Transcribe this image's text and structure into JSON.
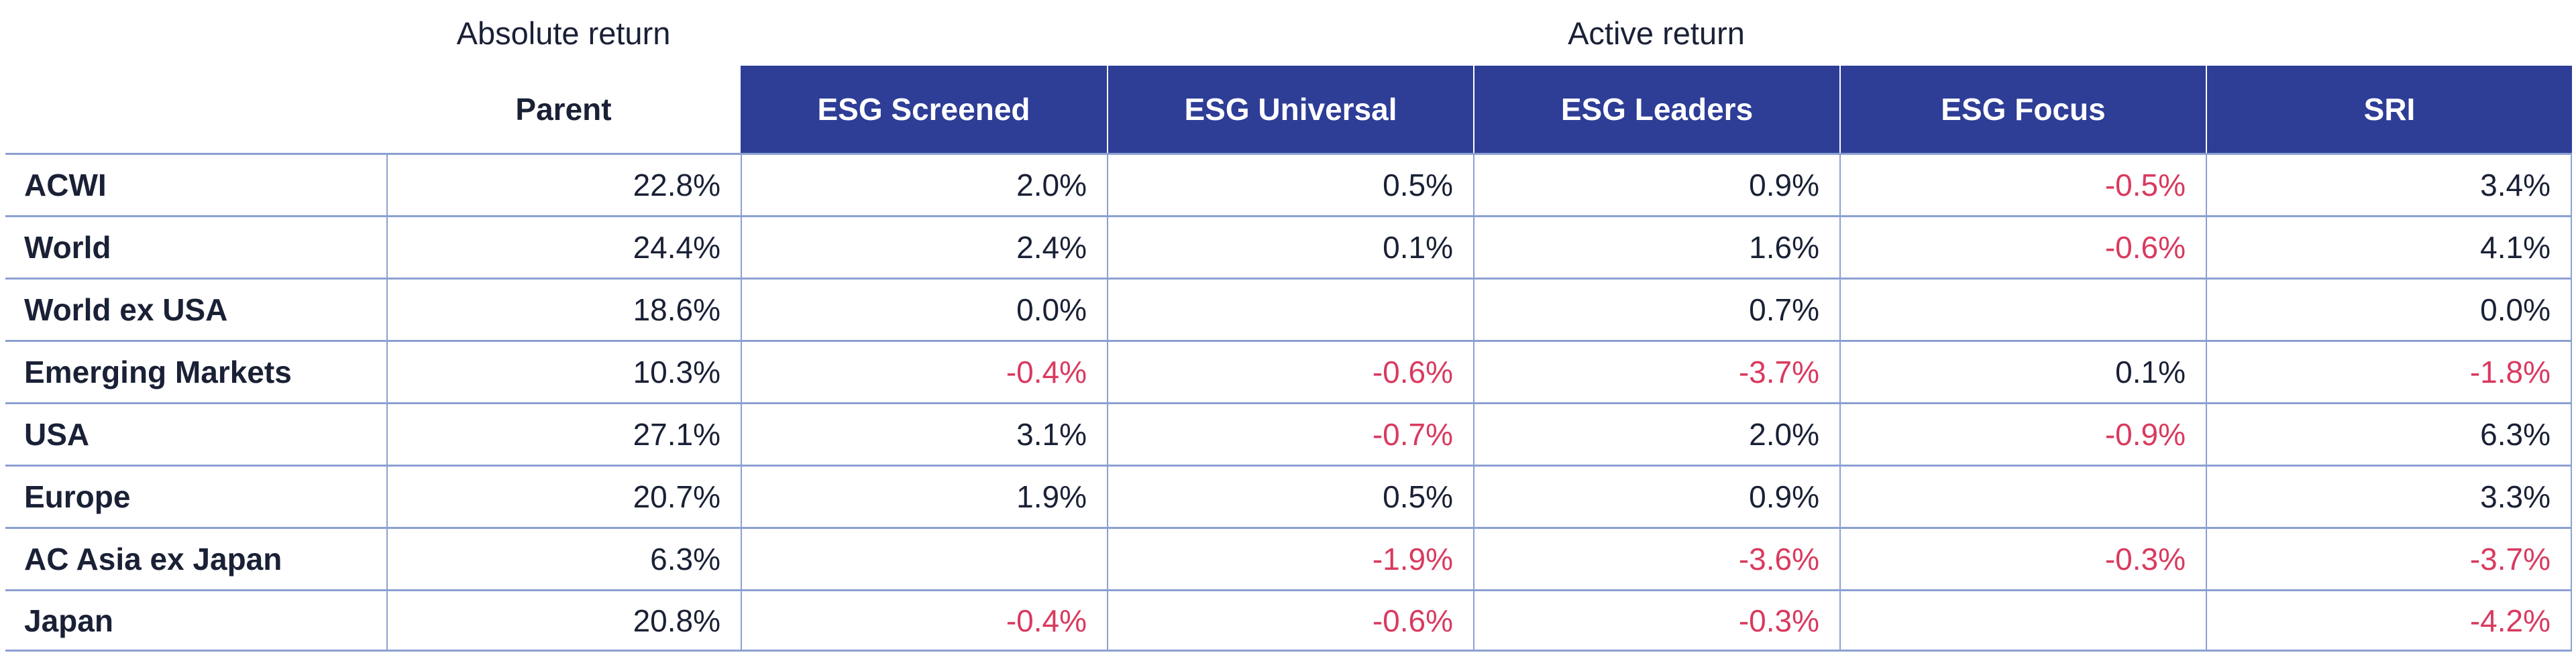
{
  "page": {
    "group_titles": {
      "absolute": "Absolute return",
      "active": "Active return"
    }
  },
  "table": {
    "columns": [
      "Parent",
      "ESG Screened",
      "ESG Universal",
      "ESG Leaders",
      "ESG Focus",
      "SRI"
    ],
    "rows": [
      {
        "label": "ACWI",
        "values": [
          "22.8%",
          "2.0%",
          "0.5%",
          "0.9%",
          "-0.5%",
          "3.4%"
        ]
      },
      {
        "label": "World",
        "values": [
          "24.4%",
          "2.4%",
          "0.1%",
          "1.6%",
          "-0.6%",
          "4.1%"
        ]
      },
      {
        "label": "World ex USA",
        "values": [
          "18.6%",
          "0.0%",
          "",
          "0.7%",
          "",
          "0.0%"
        ]
      },
      {
        "label": "Emerging Markets",
        "values": [
          "10.3%",
          "-0.4%",
          "-0.6%",
          "-3.7%",
          "0.1%",
          "-1.8%"
        ]
      },
      {
        "label": "USA",
        "values": [
          "27.1%",
          "3.1%",
          "-0.7%",
          "2.0%",
          "-0.9%",
          "6.3%"
        ]
      },
      {
        "label": "Europe",
        "values": [
          "20.7%",
          "1.9%",
          "0.5%",
          "0.9%",
          "",
          "3.3%"
        ]
      },
      {
        "label": "AC Asia ex Japan",
        "values": [
          "6.3%",
          "",
          "-1.9%",
          "-3.6%",
          "-0.3%",
          "-3.7%"
        ]
      },
      {
        "label": "Japan",
        "values": [
          "20.8%",
          "-0.4%",
          "-0.6%",
          "-0.3%",
          "",
          "-4.2%"
        ]
      }
    ]
  },
  "colors": {
    "header_bg": "#2e3d96",
    "header_text": "#ffffff",
    "negative": "#d93a5f",
    "text": "#1a2136",
    "grid_line": "#8ba0d2",
    "background": "#ffffff"
  },
  "chart_data": {
    "type": "table",
    "title": "",
    "column_groups": [
      {
        "label": "Absolute return",
        "columns": [
          "Parent"
        ]
      },
      {
        "label": "Active return",
        "columns": [
          "ESG Screened",
          "ESG Universal",
          "ESG Leaders",
          "ESG Focus",
          "SRI"
        ]
      }
    ],
    "columns": [
      "Parent",
      "ESG Screened",
      "ESG Universal",
      "ESG Leaders",
      "ESG Focus",
      "SRI"
    ],
    "rows": [
      "ACWI",
      "World",
      "World ex USA",
      "Emerging Markets",
      "USA",
      "Europe",
      "AC Asia ex Japan",
      "Japan"
    ],
    "values_pct": [
      [
        22.8,
        2.0,
        0.5,
        0.9,
        -0.5,
        3.4
      ],
      [
        24.4,
        2.4,
        0.1,
        1.6,
        -0.6,
        4.1
      ],
      [
        18.6,
        0.0,
        null,
        0.7,
        null,
        0.0
      ],
      [
        10.3,
        -0.4,
        -0.6,
        -3.7,
        0.1,
        -1.8
      ],
      [
        27.1,
        3.1,
        -0.7,
        2.0,
        -0.9,
        6.3
      ],
      [
        20.7,
        1.9,
        0.5,
        0.9,
        null,
        3.3
      ],
      [
        6.3,
        null,
        -1.9,
        -3.6,
        -0.3,
        -3.7
      ],
      [
        20.8,
        -0.4,
        -0.6,
        -0.3,
        null,
        -4.2
      ]
    ],
    "value_unit": "%",
    "negative_color_coding": "negative values shown in red/pink",
    "grid": true,
    "legend_position": "none"
  }
}
